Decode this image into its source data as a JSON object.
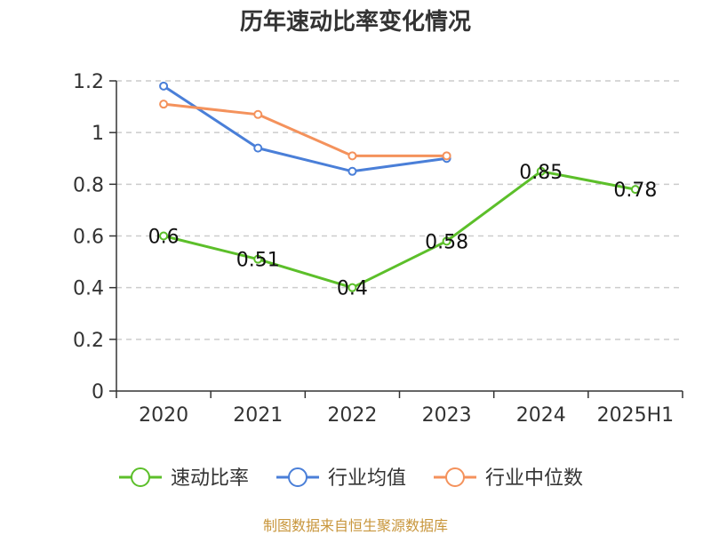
{
  "source": "制图数据来自恒生聚源数据库",
  "chart_data": {
    "type": "line",
    "title": "历年速动比率变化情况",
    "categories": [
      "2020",
      "2021",
      "2022",
      "2023",
      "2024",
      "2025H1"
    ],
    "y_ticks": [
      "0",
      "0.2",
      "0.4",
      "0.6",
      "0.8",
      "1",
      "1.2"
    ],
    "ylim": [
      0,
      1.2
    ],
    "grid": "horizontal-dashed",
    "legend_position": "bottom",
    "series": [
      {
        "name": "速动比率",
        "color": "#5cbf2a",
        "values": [
          0.6,
          0.51,
          0.4,
          0.58,
          0.85,
          0.78
        ],
        "labels": [
          "0.6",
          "0.51",
          "0.4",
          "0.58",
          "0.85",
          "0.78"
        ]
      },
      {
        "name": "行业均值",
        "color": "#4a7fd8",
        "values": [
          1.18,
          0.94,
          0.85,
          0.9,
          null,
          null
        ]
      },
      {
        "name": "行业中位数",
        "color": "#f4925c",
        "values": [
          1.11,
          1.07,
          0.91,
          0.91,
          null,
          null
        ]
      }
    ]
  }
}
